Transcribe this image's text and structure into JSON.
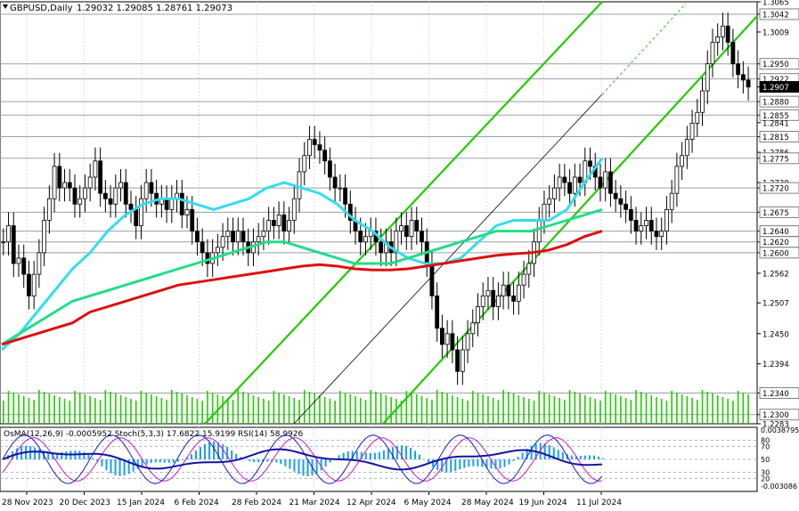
{
  "header": {
    "symbol_label": "GBPUSD,Daily",
    "ohlc_label": "1.29032 1.29085 1.28761 1.29073"
  },
  "indicator_header": "OsMA(12,26,9) -0.0005952  Stoch(5,3,3) 17.6822 15.9199  RSI(14) 58.9926",
  "colors": {
    "candle": "#000000",
    "ma_fast": "#33ddee",
    "ma_mid": "#22dd88",
    "ma_slow": "#dd1111",
    "channel": "#22cc00",
    "trendline": "#000000",
    "volume": "#22cc00",
    "osma": "#1c9cf0",
    "stoch_main": "#1c1cc8",
    "stoch_signal": "#c81cc8",
    "rsi": "#1414a0",
    "level_line": "#9aa0a8",
    "grid": "#d8dde3"
  },
  "chart_data": [
    {
      "type": "candlestick",
      "symbol": "GBPUSD",
      "timeframe": "Daily",
      "last": {
        "open": 1.29032,
        "high": 1.29085,
        "low": 1.28761,
        "close": 1.29073
      },
      "x_labels": [
        "28 Nov 2023",
        "20 Dec 2023",
        "15 Jan 2024",
        "6 Feb 2024",
        "28 Feb 2024",
        "21 Mar 2024",
        "12 Apr 2024",
        "6 May 2024",
        "28 May 2024",
        "19 Jun 2024",
        "11 Jul 2024"
      ],
      "y_ticks": [
        "1.3065",
        "1.3042",
        "1.3009",
        "1.2950",
        "1.2922",
        "1.2907",
        "1.2880",
        "1.2855",
        "1.2841",
        "1.2815",
        "1.2786",
        "1.2775",
        "1.2730",
        "1.2720",
        "1.2675",
        "1.2640",
        "1.2620",
        "1.2600",
        "1.2562",
        "1.2507",
        "1.2450",
        "1.2394",
        "1.2340",
        "1.2300",
        "1.2283"
      ],
      "y_tick_values": [
        1.3065,
        1.3042,
        1.3009,
        1.295,
        1.2922,
        1.29073,
        1.288,
        1.2855,
        1.2841,
        1.2815,
        1.2786,
        1.2775,
        1.273,
        1.272,
        1.2675,
        1.264,
        1.262,
        1.26,
        1.2562,
        1.2507,
        1.245,
        1.2394,
        1.234,
        1.23,
        1.2283
      ],
      "level_lines": [
        "1.3042",
        "1.2950",
        "1.2922",
        "1.2880",
        "1.2855",
        "1.2815",
        "1.2775",
        "1.2720",
        "1.2675",
        "1.2640",
        "1.2620",
        "1.2600",
        "1.2340",
        "1.2300"
      ],
      "level_line_values": [
        1.3042,
        1.295,
        1.2922,
        1.288,
        1.2855,
        1.2815,
        1.2775,
        1.272,
        1.2675,
        1.264,
        1.262,
        1.26,
        1.234,
        1.23
      ],
      "current_price": 1.29073,
      "ylim": [
        1.2283,
        1.3065
      ],
      "candles_close_daily_approx": [
        1.262,
        1.265,
        1.258,
        1.259,
        1.256,
        1.252,
        1.256,
        1.26,
        1.266,
        1.27,
        1.276,
        1.272,
        1.273,
        1.272,
        1.269,
        1.27,
        1.272,
        1.274,
        1.277,
        1.271,
        1.27,
        1.269,
        1.272,
        1.273,
        1.269,
        1.268,
        1.265,
        1.27,
        1.273,
        1.271,
        1.269,
        1.27,
        1.268,
        1.27,
        1.271,
        1.267,
        1.268,
        1.264,
        1.262,
        1.26,
        1.258,
        1.26,
        1.261,
        1.263,
        1.264,
        1.262,
        1.264,
        1.262,
        1.26,
        1.262,
        1.263,
        1.264,
        1.266,
        1.265,
        1.267,
        1.264,
        1.266,
        1.27,
        1.275,
        1.278,
        1.281,
        1.28,
        1.279,
        1.277,
        1.274,
        1.272,
        1.272,
        1.269,
        1.266,
        1.264,
        1.262,
        1.263,
        1.264,
        1.262,
        1.26,
        1.262,
        1.26,
        1.264,
        1.265,
        1.263,
        1.266,
        1.264,
        1.262,
        1.258,
        1.252,
        1.246,
        1.243,
        1.245,
        1.242,
        1.238,
        1.242,
        1.245,
        1.247,
        1.25,
        1.252,
        1.253,
        1.25,
        1.252,
        1.254,
        1.252,
        1.251,
        1.254,
        1.256,
        1.258,
        1.262,
        1.266,
        1.269,
        1.27,
        1.272,
        1.274,
        1.273,
        1.271,
        1.274,
        1.273,
        1.277,
        1.276,
        1.274,
        1.272,
        1.275,
        1.271,
        1.27,
        1.269,
        1.268,
        1.266,
        1.264,
        1.265,
        1.266,
        1.264,
        1.263,
        1.264,
        1.268,
        1.271,
        1.276,
        1.278,
        1.281,
        1.284,
        1.286,
        1.29,
        1.295,
        1.299,
        1.3,
        1.302,
        1.299,
        1.295,
        1.293,
        1.292,
        1.2907
      ]
    },
    {
      "type": "line",
      "name": "moving_averages",
      "ylim": [
        1.2283,
        1.3065
      ],
      "series": [
        {
          "key": "ma_fast",
          "values": [
            1.242,
            1.245,
            1.249,
            1.253,
            1.257,
            1.26,
            1.264,
            1.267,
            1.269,
            1.27,
            1.27,
            1.269,
            1.268,
            1.269,
            1.27,
            1.272,
            1.273,
            1.272,
            1.271,
            1.269,
            1.266,
            1.264,
            1.261,
            1.259,
            1.258,
            1.258,
            1.259,
            1.262,
            1.265,
            1.266,
            1.266,
            1.266,
            1.268,
            1.273,
            1.2775
          ]
        },
        {
          "key": "ma_mid",
          "values": [
            1.243,
            1.245,
            1.247,
            1.249,
            1.251,
            1.252,
            1.253,
            1.254,
            1.255,
            1.256,
            1.257,
            1.258,
            1.259,
            1.26,
            1.261,
            1.262,
            1.262,
            1.261,
            1.26,
            1.259,
            1.258,
            1.258,
            1.258,
            1.259,
            1.26,
            1.261,
            1.262,
            1.263,
            1.264,
            1.264,
            1.264,
            1.265,
            1.266,
            1.267,
            1.268
          ]
        },
        {
          "key": "ma_slow",
          "values": [
            1.243,
            1.244,
            1.245,
            1.246,
            1.247,
            1.249,
            1.25,
            1.251,
            1.252,
            1.253,
            1.254,
            1.2545,
            1.255,
            1.2555,
            1.256,
            1.2565,
            1.257,
            1.2575,
            1.2578,
            1.2575,
            1.257,
            1.2568,
            1.2568,
            1.257,
            1.2575,
            1.258,
            1.2585,
            1.259,
            1.2595,
            1.2598,
            1.26,
            1.2605,
            1.2615,
            1.263,
            1.264
          ]
        }
      ]
    },
    {
      "type": "bar",
      "name": "oscillators",
      "levels": [
        "80",
        "70",
        "50",
        "30",
        "20"
      ],
      "level_values": [
        80,
        70,
        50,
        30,
        20
      ],
      "osma_ticks": [
        "0.0038795",
        "0.003086"
      ],
      "osma_tick_signs": [
        1,
        -1
      ],
      "osma_range": [
        -0.003086,
        0.0038795
      ],
      "stoch_main": 17.6822,
      "stoch_signal": 15.9199,
      "rsi": 58.9926,
      "osma_last": -0.0005952
    }
  ]
}
